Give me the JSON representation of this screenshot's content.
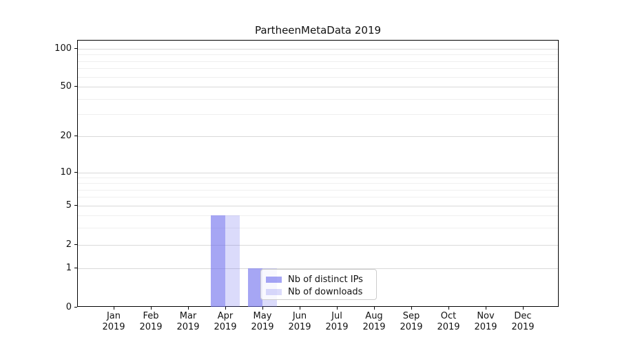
{
  "title": "PartheenMetaData 2019",
  "chart_data": {
    "type": "bar",
    "title": "PartheenMetaData 2019",
    "categories": [
      "Jan",
      "Feb",
      "Mar",
      "Apr",
      "May",
      "Jun",
      "Jul",
      "Aug",
      "Sep",
      "Oct",
      "Nov",
      "Dec"
    ],
    "category_year": "2019",
    "series": [
      {
        "name": "Nb of distinct IPs",
        "color": "#7070ee",
        "alpha": 0.62,
        "values": [
          0,
          0,
          0,
          4,
          1,
          0,
          0,
          0,
          0,
          0,
          0,
          0
        ]
      },
      {
        "name": "Nb of downloads",
        "color": "#7070ee",
        "alpha": 0.25,
        "values": [
          0,
          0,
          0,
          4,
          1,
          0,
          0,
          0,
          0,
          0,
          0,
          0
        ]
      }
    ],
    "yscale": "symlog",
    "yticks": [
      0,
      1,
      2,
      5,
      10,
      20,
      50,
      100
    ],
    "minor_gridlines": [
      3,
      4,
      6,
      7,
      8,
      9,
      30,
      40,
      60,
      70,
      80,
      90
    ],
    "ylim": [
      0,
      120
    ],
    "grid": "horizontal",
    "legend_position": "lower center",
    "colors": {
      "bar_base": "#7070ee",
      "grid_major": "#d9d9d9",
      "grid_minor": "#efefef",
      "spine": "#000000",
      "legend_border": "#cccccc"
    }
  }
}
